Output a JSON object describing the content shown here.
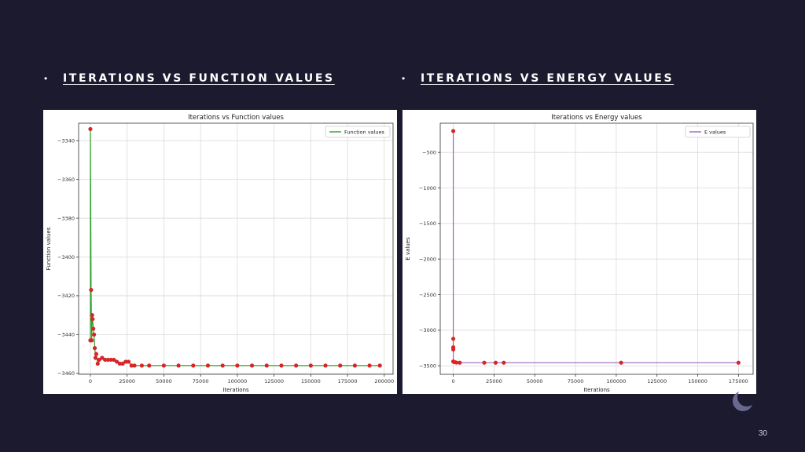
{
  "slide": {
    "heading_left": "ITERATIONS VS FUNCTION VALUES",
    "heading_right": "ITERATIONS VS ENERGY VALUES",
    "bullet": "•",
    "page_number": "30"
  },
  "colors": {
    "background": "#1c1a2e",
    "function_line": "#2ca02c",
    "energy_line": "#9467bd",
    "marker": "#d62728"
  },
  "chart_data": [
    {
      "type": "line",
      "title": "Iterations vs Function values",
      "xlabel": "Iterations",
      "ylabel": "Function values",
      "xlim": [
        -8000,
        206000
      ],
      "ylim": [
        -3460.5,
        -3331
      ],
      "xticks": [
        0,
        25000,
        50000,
        75000,
        100000,
        125000,
        150000,
        175000,
        200000
      ],
      "xtick_labels": [
        "0",
        "25000",
        "50000",
        "75000",
        "100000",
        "125000",
        "150000",
        "175000",
        "200000"
      ],
      "yticks": [
        -3340,
        -3360,
        -3380,
        -3400,
        -3420,
        -3440,
        -3460
      ],
      "ytick_labels": [
        "−3340",
        "−3360",
        "−3380",
        "−3400",
        "−3420",
        "−3440",
        "−3460"
      ],
      "grid": true,
      "legend_position": "top-right",
      "series": [
        {
          "name": "Function values",
          "x": [
            0,
            0,
            500,
            900,
            1200,
            1500,
            2000,
            2500,
            3000,
            3500,
            4000,
            5000,
            6000,
            8000,
            10000,
            12000,
            14000,
            16000,
            18000,
            20000,
            22000,
            24000,
            26000,
            28000,
            30000,
            35000,
            40000,
            50000,
            60000,
            70000,
            80000,
            90000,
            100000,
            110000,
            120000,
            130000,
            140000,
            150000,
            160000,
            170000,
            180000,
            190000,
            197000
          ],
          "y": [
            -3443,
            -3334,
            -3417,
            -3443,
            -3430,
            -3432,
            -3437,
            -3440,
            -3447,
            -3452,
            -3450,
            -3455,
            -3453,
            -3452,
            -3453,
            -3453,
            -3453,
            -3453,
            -3454,
            -3455,
            -3455,
            -3454,
            -3454,
            -3456,
            -3456,
            -3456,
            -3456,
            -3456,
            -3456,
            -3456,
            -3456,
            -3456,
            -3456,
            -3456,
            -3456,
            -3456,
            -3456,
            -3456,
            -3456,
            -3456,
            -3456,
            -3456,
            -3456
          ]
        }
      ]
    },
    {
      "type": "line",
      "title": "Iterations vs Energy values",
      "xlabel": "Iterations",
      "ylabel": "E values",
      "xlim": [
        -8000,
        184000
      ],
      "ylim": [
        -3620,
        -90
      ],
      "xticks": [
        0,
        25000,
        50000,
        75000,
        100000,
        125000,
        150000,
        175000
      ],
      "xtick_labels": [
        "0",
        "25000",
        "50000",
        "75000",
        "100000",
        "125000",
        "150000",
        "175000"
      ],
      "yticks": [
        -500,
        -1000,
        -1500,
        -2000,
        -2500,
        -3000,
        -3500
      ],
      "ytick_labels": [
        "−500",
        "−1000",
        "−1500",
        "−2000",
        "−2500",
        "−3000",
        "−3500"
      ],
      "grid": true,
      "legend_position": "top-right",
      "series": [
        {
          "name": "E values",
          "x": [
            0,
            0,
            0,
            0,
            0,
            0,
            300,
            1000,
            2000,
            4000,
            19000,
            26000,
            31000,
            103000,
            175000
          ],
          "y": [
            -3440,
            -200,
            -3120,
            -3240,
            -3270,
            -3440,
            -3445,
            -3450,
            -3455,
            -3457,
            -3457,
            -3457,
            -3457,
            -3457,
            -3457
          ]
        }
      ]
    }
  ]
}
